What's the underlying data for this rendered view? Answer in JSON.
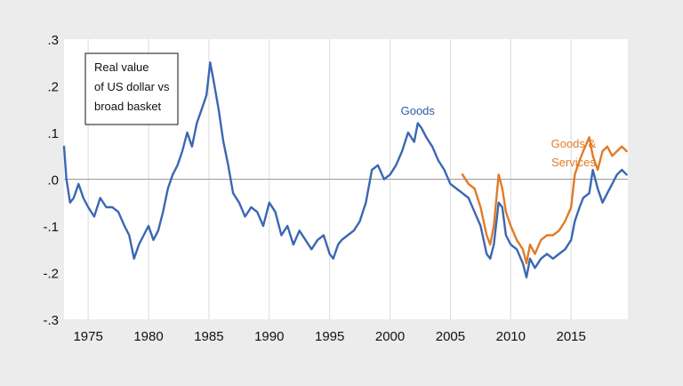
{
  "chart_data": {
    "type": "line",
    "title": "",
    "xlabel": "",
    "ylabel": "",
    "xlim": [
      1973,
      2019.7
    ],
    "ylim": [
      -0.3,
      0.3
    ],
    "x_ticks": [
      1975,
      1980,
      1985,
      1990,
      1995,
      2000,
      2005,
      2010,
      2015
    ],
    "x_tick_labels": [
      "1975",
      "1980",
      "1985",
      "1990",
      "1995",
      "2000",
      "2005",
      "2010",
      "2015"
    ],
    "y_ticks": [
      -0.3,
      -0.2,
      -0.1,
      0.0,
      0.1,
      0.2,
      0.3
    ],
    "y_tick_labels": [
      "-.3",
      "-.2",
      "-.1",
      ".0",
      ".1",
      ".2",
      ".3"
    ],
    "grid": "vertical",
    "zero_line": true,
    "legend_box": {
      "lines": [
        "Real value",
        "of US dollar vs",
        "broad basket"
      ],
      "position": "top-left"
    },
    "series_labels": [
      {
        "series": 0,
        "lines": [
          "Goods"
        ],
        "color": "#2e5aa7",
        "x": 2002.3,
        "y": 0.138
      },
      {
        "series": 1,
        "lines": [
          "Goods &",
          "Services"
        ],
        "color": "#e07b28",
        "x": 2015.2,
        "y": 0.068
      }
    ],
    "series": [
      {
        "name": "Goods",
        "color": "#3b67b3",
        "x": [
          1973.0,
          1973.2,
          1973.5,
          1973.8,
          1974.2,
          1974.6,
          1975.0,
          1975.5,
          1976.0,
          1976.5,
          1977.0,
          1977.5,
          1978.0,
          1978.4,
          1978.8,
          1979.2,
          1979.6,
          1980.0,
          1980.4,
          1980.8,
          1981.2,
          1981.6,
          1982.0,
          1982.4,
          1982.8,
          1983.2,
          1983.6,
          1984.0,
          1984.4,
          1984.8,
          1985.1,
          1985.4,
          1985.8,
          1986.2,
          1986.6,
          1987.0,
          1987.5,
          1988.0,
          1988.5,
          1989.0,
          1989.5,
          1990.0,
          1990.5,
          1991.0,
          1991.5,
          1992.0,
          1992.5,
          1993.0,
          1993.5,
          1994.0,
          1994.5,
          1995.0,
          1995.3,
          1995.7,
          1996.0,
          1996.5,
          1997.0,
          1997.5,
          1998.0,
          1998.5,
          1999.0,
          1999.5,
          2000.0,
          2000.5,
          2001.0,
          2001.5,
          2002.0,
          2002.3,
          2002.6,
          2003.0,
          2003.5,
          2004.0,
          2004.5,
          2005.0,
          2005.5,
          2006.0,
          2006.5,
          2007.0,
          2007.5,
          2008.0,
          2008.3,
          2008.6,
          2009.0,
          2009.3,
          2009.6,
          2010.0,
          2010.5,
          2011.0,
          2011.3,
          2011.6,
          2012.0,
          2012.5,
          2013.0,
          2013.5,
          2014.0,
          2014.5,
          2015.0,
          2015.3,
          2015.7,
          2016.0,
          2016.5,
          2016.8,
          2017.2,
          2017.6,
          2018.0,
          2018.4,
          2018.8,
          2019.2,
          2019.6
        ],
        "values": [
          0.07,
          0.0,
          -0.05,
          -0.04,
          -0.01,
          -0.04,
          -0.06,
          -0.08,
          -0.04,
          -0.06,
          -0.06,
          -0.07,
          -0.1,
          -0.12,
          -0.17,
          -0.14,
          -0.12,
          -0.1,
          -0.13,
          -0.11,
          -0.07,
          -0.02,
          0.01,
          0.03,
          0.06,
          0.1,
          0.07,
          0.12,
          0.15,
          0.18,
          0.25,
          0.21,
          0.15,
          0.08,
          0.03,
          -0.03,
          -0.05,
          -0.08,
          -0.06,
          -0.07,
          -0.1,
          -0.05,
          -0.07,
          -0.12,
          -0.1,
          -0.14,
          -0.11,
          -0.13,
          -0.15,
          -0.13,
          -0.12,
          -0.16,
          -0.17,
          -0.14,
          -0.13,
          -0.12,
          -0.11,
          -0.09,
          -0.05,
          0.02,
          0.03,
          0.0,
          0.01,
          0.03,
          0.06,
          0.1,
          0.08,
          0.12,
          0.11,
          0.09,
          0.07,
          0.04,
          0.02,
          -0.01,
          -0.02,
          -0.03,
          -0.04,
          -0.07,
          -0.1,
          -0.16,
          -0.17,
          -0.14,
          -0.05,
          -0.06,
          -0.12,
          -0.14,
          -0.15,
          -0.18,
          -0.21,
          -0.17,
          -0.19,
          -0.17,
          -0.16,
          -0.17,
          -0.16,
          -0.15,
          -0.13,
          -0.09,
          -0.06,
          -0.04,
          -0.03,
          0.02,
          -0.02,
          -0.05,
          -0.03,
          -0.01,
          0.01,
          0.02,
          0.01
        ]
      },
      {
        "name": "Goods & Services",
        "color": "#e07b28",
        "x": [
          2006.0,
          2006.5,
          2007.0,
          2007.5,
          2008.0,
          2008.3,
          2008.6,
          2009.0,
          2009.3,
          2009.6,
          2010.0,
          2010.5,
          2011.0,
          2011.3,
          2011.6,
          2012.0,
          2012.5,
          2013.0,
          2013.5,
          2014.0,
          2014.5,
          2015.0,
          2015.3,
          2015.7,
          2016.0,
          2016.5,
          2016.8,
          2017.2,
          2017.6,
          2018.0,
          2018.4,
          2018.8,
          2019.2,
          2019.6
        ],
        "values": [
          0.01,
          -0.01,
          -0.02,
          -0.06,
          -0.12,
          -0.14,
          -0.1,
          0.01,
          -0.02,
          -0.07,
          -0.1,
          -0.13,
          -0.15,
          -0.18,
          -0.14,
          -0.16,
          -0.13,
          -0.12,
          -0.12,
          -0.11,
          -0.09,
          -0.06,
          0.01,
          0.04,
          0.06,
          0.09,
          0.05,
          0.02,
          0.06,
          0.07,
          0.05,
          0.06,
          0.07,
          0.06
        ]
      }
    ]
  }
}
